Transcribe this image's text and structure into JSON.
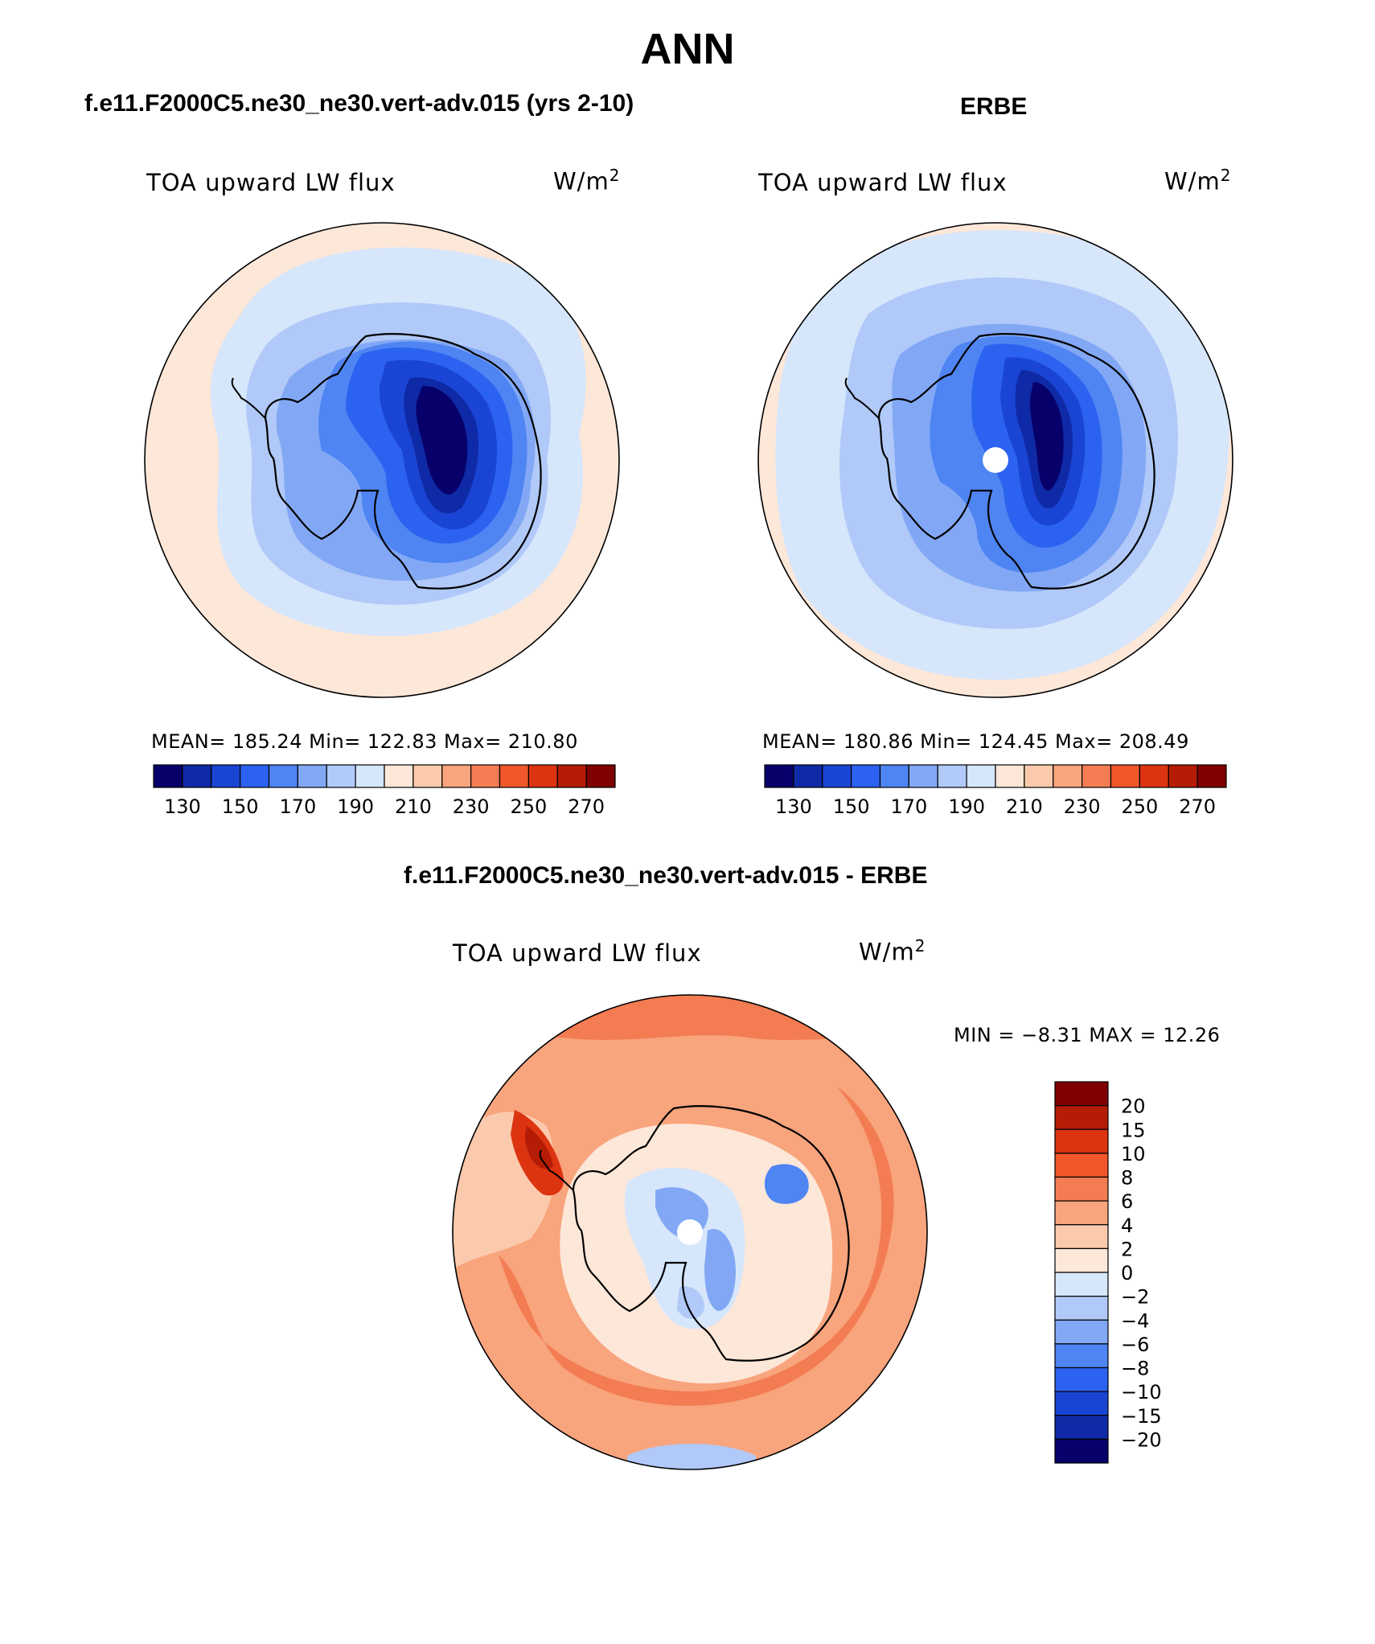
{
  "figure": {
    "title": "ANN"
  },
  "panels": [
    {
      "title": "f.e11.F2000C5.ne30_ne30.vert-adv.015 (yrs 2-10)",
      "field": "TOA upward LW flux",
      "units_base": "W/m",
      "units_exp": "2",
      "stats": "MEAN= 185.24   Min= 122.83   Max= 210.80"
    },
    {
      "title": "ERBE",
      "field": "TOA upward LW flux",
      "units_base": "W/m",
      "units_exp": "2",
      "stats": "MEAN= 180.86   Min= 124.45   Max= 208.49"
    },
    {
      "title": "f.e11.F2000C5.ne30_ne30.vert-adv.015 - ERBE",
      "field": "TOA upward LW flux",
      "units_base": "W/m",
      "units_exp": "2",
      "stats": "MIN =   −8.31  MAX =   12.26"
    }
  ],
  "colorbars": {
    "absolute": {
      "ticks": [
        "130",
        "150",
        "170",
        "190",
        "210",
        "230",
        "250",
        "270"
      ],
      "colors": [
        "#07006b",
        "#0f2aa6",
        "#1a45d4",
        "#2c62f0",
        "#4f84f3",
        "#82a8f5",
        "#b0c9f8",
        "#d6e6fb",
        "#fde7d8",
        "#fbcaad",
        "#f8a47d",
        "#f37c52",
        "#f0572a",
        "#dc3410",
        "#b51c06",
        "#7f0000"
      ]
    },
    "difference": {
      "labels": [
        "20",
        "15",
        "10",
        "8",
        "6",
        "4",
        "2",
        "0",
        "−2",
        "−4",
        "−6",
        "−8",
        "−10",
        "−15",
        "−20"
      ],
      "colors": [
        "#7f0000",
        "#b51c06",
        "#dc3410",
        "#f0572a",
        "#f37c52",
        "#f8a47d",
        "#fbcaad",
        "#fde7d8",
        "#d6e6fb",
        "#b0c9f8",
        "#82a8f5",
        "#4f84f3",
        "#2c62f0",
        "#1a45d4",
        "#0f2aa6",
        "#07006b"
      ]
    }
  }
}
